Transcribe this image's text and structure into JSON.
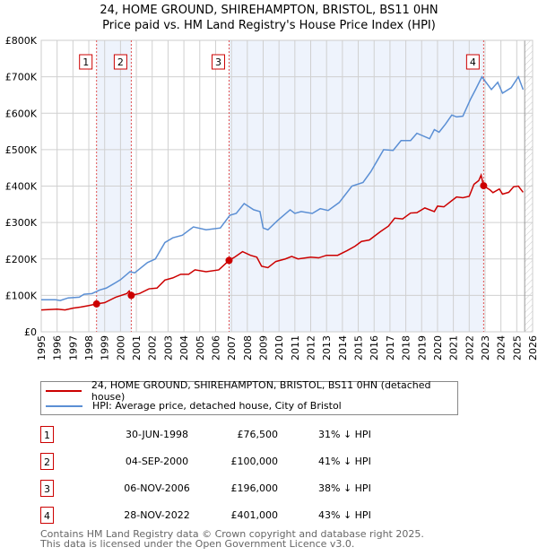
{
  "chart_data": {
    "type": "line",
    "title": "24, HOME GROUND, SHIREHAMPTON, BRISTOL, BS11 0HN",
    "subtitle": "Price paid vs. HM Land Registry's House Price Index (HPI)",
    "xlim": [
      1995,
      2026
    ],
    "ylim": [
      0,
      800000
    ],
    "y_ticks": [
      0,
      100000,
      200000,
      300000,
      400000,
      500000,
      600000,
      700000,
      800000
    ],
    "y_tick_labels": [
      "£0",
      "£100K",
      "£200K",
      "£300K",
      "£400K",
      "£500K",
      "£600K",
      "£700K",
      "£800K"
    ],
    "x_ticks": [
      1995,
      1996,
      1997,
      1998,
      1999,
      2000,
      2001,
      2002,
      2003,
      2004,
      2005,
      2006,
      2007,
      2008,
      2009,
      2010,
      2011,
      2012,
      2013,
      2014,
      2015,
      2016,
      2017,
      2018,
      2019,
      2020,
      2021,
      2022,
      2023,
      2024,
      2025,
      2026
    ],
    "grid": true,
    "forecast_hatch_from": 2025.5,
    "series": [
      {
        "name": "24, HOME GROUND, SHIREHAMPTON, BRISTOL, BS11 0HN (detached house)",
        "color": "#cc0000",
        "x": [
          1995,
          1996,
          1996.5,
          1997,
          1997.5,
          1998,
          1998.5,
          1999,
          1999.7,
          2000.4,
          2000.55,
          2000.68,
          2001.2,
          2001.8,
          2002.3,
          2002.8,
          2003.3,
          2003.8,
          2004.3,
          2004.7,
          2005.4,
          2006.2,
          2006.85,
          2007.2,
          2007.7,
          2008.2,
          2008.6,
          2008.9,
          2009.3,
          2009.8,
          2010.4,
          2010.8,
          2011.2,
          2012,
          2012.5,
          2013,
          2013.7,
          2014.3,
          2014.8,
          2015.2,
          2015.7,
          2016.4,
          2016.9,
          2017.3,
          2017.8,
          2018.3,
          2018.7,
          2019.2,
          2019.8,
          2020,
          2020.4,
          2020.9,
          2021.2,
          2021.6,
          2022,
          2022.3,
          2022.6,
          2022.75,
          2022.9,
          2023.3,
          2023.5,
          2023.9,
          2024.1,
          2024.5,
          2024.8,
          2025.1,
          2025.4
        ],
        "values": [
          60000,
          62000,
          60000,
          65000,
          68000,
          72000,
          76500,
          80000,
          95000,
          105000,
          112000,
          100000,
          105000,
          118000,
          120000,
          142000,
          148000,
          158000,
          158000,
          170000,
          165000,
          170000,
          196000,
          205000,
          220000,
          210000,
          205000,
          180000,
          176000,
          193000,
          200000,
          207000,
          200000,
          205000,
          203000,
          210000,
          210000,
          223000,
          235000,
          248000,
          252000,
          275000,
          290000,
          312000,
          310000,
          326000,
          327000,
          340000,
          330000,
          345000,
          343000,
          360000,
          370000,
          368000,
          372000,
          405000,
          415000,
          430000,
          401000,
          390000,
          382000,
          392000,
          378000,
          383000,
          398000,
          400000,
          383000
        ]
      },
      {
        "name": "HPI: Average price, detached house, City of Bristol",
        "color": "#5b8fd4",
        "x": [
          1995,
          1995.9,
          1996.2,
          1996.7,
          1997.4,
          1997.7,
          1998.2,
          1998.7,
          1999.1,
          1999.5,
          2000,
          2000.6,
          2000.9,
          2001.7,
          2002.2,
          2002.8,
          2003.3,
          2003.9,
          2004.6,
          2005.4,
          2006.3,
          2006.9,
          2007.3,
          2007.8,
          2008.4,
          2008.8,
          2009,
          2009.3,
          2009.9,
          2010.7,
          2011,
          2011.4,
          2012.1,
          2012.6,
          2013.1,
          2013.8,
          2014.6,
          2015.3,
          2015.8,
          2016.2,
          2016.6,
          2017.2,
          2017.7,
          2018.3,
          2018.7,
          2019.5,
          2019.8,
          2020.1,
          2020.5,
          2020.9,
          2021.2,
          2021.6,
          2022.1,
          2022.4,
          2022.8,
          2023.4,
          2023.8,
          2024.1,
          2024.65,
          2025.1,
          2025.4
        ],
        "values": [
          88000,
          88000,
          86000,
          93000,
          95000,
          103000,
          105000,
          115000,
          120000,
          130000,
          143000,
          165000,
          162000,
          190000,
          200000,
          245000,
          258000,
          265000,
          288000,
          280000,
          285000,
          320000,
          325000,
          352000,
          335000,
          330000,
          285000,
          280000,
          305000,
          335000,
          325000,
          330000,
          325000,
          338000,
          333000,
          355000,
          400000,
          410000,
          440000,
          470000,
          500000,
          498000,
          525000,
          525000,
          545000,
          530000,
          555000,
          548000,
          570000,
          595000,
          590000,
          592000,
          640000,
          665000,
          700000,
          665000,
          685000,
          655000,
          670000,
          700000,
          665000
        ]
      }
    ],
    "sales": [
      {
        "n": "1",
        "x": 1998.49,
        "value": 76500,
        "date": "30-JUN-1998",
        "price": "£76,500",
        "hpi": "31% ↓ HPI"
      },
      {
        "n": "2",
        "x": 2000.68,
        "value": 100000,
        "date": "04-SEP-2000",
        "price": "£100,000",
        "hpi": "41% ↓ HPI"
      },
      {
        "n": "3",
        "x": 2006.85,
        "value": 196000,
        "date": "06-NOV-2006",
        "price": "£196,000",
        "hpi": "38% ↓ HPI"
      },
      {
        "n": "4",
        "x": 2022.91,
        "value": 401000,
        "date": "28-NOV-2022",
        "price": "£401,000",
        "hpi": "43% ↓ HPI"
      }
    ],
    "shaded_ranges": [
      [
        1998.49,
        2000.68
      ],
      [
        2006.85,
        2022.91
      ]
    ]
  },
  "footer": {
    "line1": "Contains HM Land Registry data © Crown copyright and database right 2025.",
    "line2": "This data is licensed under the Open Government Licence v3.0."
  }
}
